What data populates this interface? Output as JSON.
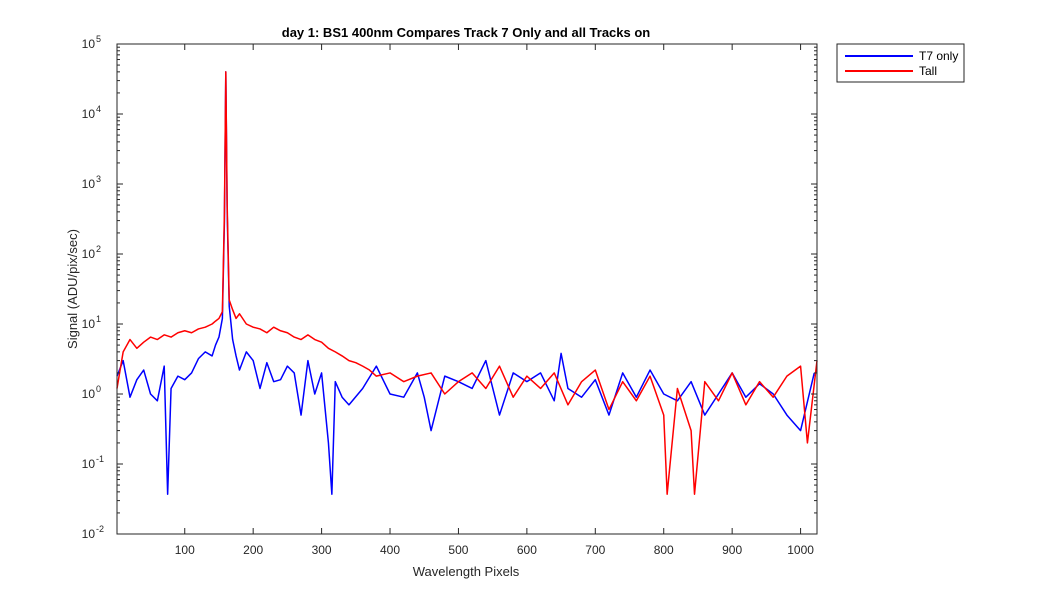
{
  "chart_data": {
    "type": "line",
    "title": "day 1: BS1  400nm  Compares Track 7 Only and all Tracks on",
    "xlabel": "Wavelength Pixels",
    "ylabel": "Signal (ADU/pix/sec)",
    "xlim": [
      1,
      1024
    ],
    "ylim": [
      0.01,
      100000
    ],
    "yscale": "log",
    "x_ticks": [
      100,
      200,
      300,
      400,
      500,
      600,
      700,
      800,
      900,
      1000
    ],
    "y_ticks": [
      {
        "value": 0.01,
        "base": "10",
        "exp": "-2"
      },
      {
        "value": 0.1,
        "base": "10",
        "exp": "-1"
      },
      {
        "value": 1,
        "base": "10",
        "exp": "0"
      },
      {
        "value": 10,
        "base": "10",
        "exp": "1"
      },
      {
        "value": 100,
        "base": "10",
        "exp": "2"
      },
      {
        "value": 1000,
        "base": "10",
        "exp": "3"
      },
      {
        "value": 10000,
        "base": "10",
        "exp": "4"
      },
      {
        "value": 100000,
        "base": "10",
        "exp": "5"
      }
    ],
    "grid": false,
    "legend_position": "outside-top-right",
    "series": [
      {
        "name": "T7 only",
        "color": "#0000ff",
        "x": [
          1,
          10,
          20,
          30,
          40,
          50,
          60,
          70,
          75,
          80,
          90,
          100,
          110,
          120,
          130,
          140,
          145,
          150,
          155,
          158,
          160,
          162,
          165,
          170,
          175,
          180,
          190,
          200,
          210,
          220,
          230,
          240,
          250,
          260,
          270,
          280,
          290,
          300,
          310,
          315,
          320,
          330,
          340,
          360,
          380,
          400,
          420,
          440,
          450,
          460,
          480,
          500,
          520,
          540,
          560,
          580,
          600,
          620,
          640,
          650,
          660,
          680,
          700,
          720,
          740,
          760,
          780,
          800,
          820,
          840,
          860,
          880,
          900,
          920,
          940,
          960,
          980,
          1000,
          1020
        ],
        "values": [
          1.8,
          3.0,
          0.9,
          1.6,
          2.2,
          1.0,
          0.8,
          2.5,
          0.037,
          1.2,
          1.8,
          1.6,
          2.0,
          3.2,
          4.0,
          3.5,
          5.0,
          6.5,
          12.0,
          300,
          40000,
          400,
          18.0,
          6.0,
          3.5,
          2.2,
          4.0,
          3.0,
          1.2,
          2.8,
          1.5,
          1.6,
          2.5,
          2.0,
          0.5,
          3.0,
          1.0,
          2.0,
          0.2,
          0.037,
          1.5,
          0.9,
          0.7,
          1.2,
          2.5,
          1.0,
          0.9,
          2.0,
          0.9,
          0.3,
          1.8,
          1.5,
          1.2,
          3.0,
          0.5,
          2.0,
          1.5,
          2.0,
          0.8,
          3.8,
          1.2,
          0.9,
          1.6,
          0.5,
          2.0,
          0.9,
          2.2,
          1.0,
          0.8,
          1.5,
          0.5,
          1.0,
          2.0,
          0.9,
          1.4,
          1.0,
          0.5,
          0.3,
          2.0
        ]
      },
      {
        "name": "Tall",
        "color": "#ff0000",
        "x": [
          1,
          10,
          20,
          30,
          40,
          50,
          60,
          70,
          80,
          90,
          100,
          110,
          120,
          130,
          140,
          145,
          150,
          155,
          158,
          160,
          162,
          165,
          170,
          175,
          180,
          190,
          200,
          210,
          220,
          230,
          240,
          250,
          260,
          270,
          280,
          290,
          300,
          310,
          320,
          330,
          340,
          350,
          360,
          370,
          380,
          400,
          420,
          440,
          460,
          480,
          500,
          520,
          540,
          560,
          580,
          600,
          620,
          640,
          660,
          680,
          700,
          720,
          740,
          760,
          780,
          800,
          805,
          820,
          840,
          845,
          860,
          880,
          900,
          920,
          940,
          960,
          980,
          1000,
          1010,
          1024
        ],
        "values": [
          1.2,
          4.0,
          6.0,
          4.5,
          5.5,
          6.5,
          6.0,
          7.0,
          6.5,
          7.5,
          8.0,
          7.5,
          8.5,
          9.0,
          10.0,
          11.0,
          12.0,
          15.0,
          400,
          40000,
          500,
          22.0,
          16.0,
          12.0,
          14.0,
          10.0,
          9.0,
          8.5,
          7.5,
          9.0,
          8.0,
          7.5,
          6.5,
          6.0,
          7.0,
          6.0,
          5.5,
          4.5,
          4.0,
          3.5,
          3.0,
          2.8,
          2.5,
          2.2,
          1.8,
          2.0,
          1.5,
          1.8,
          2.0,
          1.0,
          1.5,
          2.0,
          1.2,
          2.5,
          0.9,
          1.8,
          1.2,
          2.0,
          0.7,
          1.5,
          2.2,
          0.6,
          1.5,
          0.8,
          1.8,
          0.5,
          0.037,
          1.2,
          0.3,
          0.037,
          1.5,
          0.8,
          2.0,
          0.7,
          1.5,
          0.9,
          1.8,
          2.5,
          0.2,
          3.0
        ]
      }
    ]
  }
}
